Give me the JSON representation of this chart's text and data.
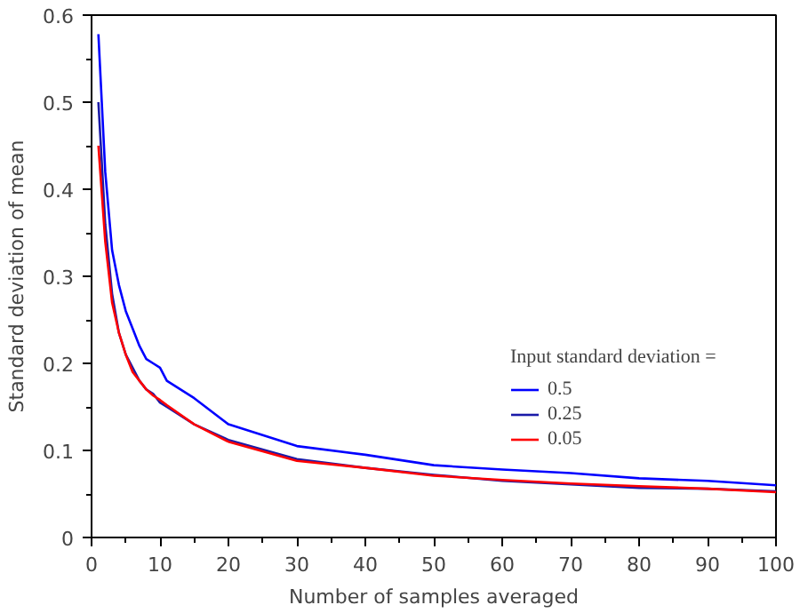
{
  "chart_data": {
    "type": "line",
    "xlabel": "Number of samples averaged",
    "ylabel": "Standard deviation of mean",
    "legend_title": "Input standard deviation =",
    "legend": "bottom right",
    "grid": false,
    "xlim": [
      0,
      100
    ],
    "xticks": [
      0,
      10,
      20,
      30,
      40,
      50,
      60,
      70,
      80,
      90,
      100
    ],
    "ylim": [
      0,
      0.6
    ],
    "yticks": [
      0,
      0.1,
      0.2,
      0.3,
      0.4,
      0.5,
      0.6
    ],
    "x": [
      1,
      2,
      3,
      4,
      5,
      6,
      7,
      8,
      9,
      10,
      11,
      15,
      20,
      30,
      40,
      50,
      60,
      70,
      80,
      90,
      100
    ],
    "series": [
      {
        "name": "0.5",
        "color": "#0000ff",
        "values": [
          0.578,
          0.42,
          0.33,
          0.29,
          0.26,
          0.24,
          0.22,
          0.205,
          0.2,
          0.195,
          0.18,
          0.16,
          0.13,
          0.105,
          0.095,
          0.083,
          0.078,
          0.074,
          0.068,
          0.065,
          0.06
        ]
      },
      {
        "name": "0.25",
        "color": "#1a1aa8",
        "values": [
          0.5,
          0.36,
          0.28,
          0.235,
          0.21,
          0.195,
          0.18,
          0.17,
          0.165,
          0.155,
          0.15,
          0.13,
          0.112,
          0.09,
          0.08,
          0.072,
          0.065,
          0.061,
          0.057,
          0.056,
          0.053
        ]
      },
      {
        "name": "0.05",
        "color": "#ff0000",
        "values": [
          0.45,
          0.34,
          0.27,
          0.235,
          0.21,
          0.19,
          0.18,
          0.17,
          0.163,
          0.158,
          0.152,
          0.13,
          0.11,
          0.088,
          0.08,
          0.071,
          0.066,
          0.062,
          0.059,
          0.056,
          0.052
        ]
      }
    ]
  }
}
